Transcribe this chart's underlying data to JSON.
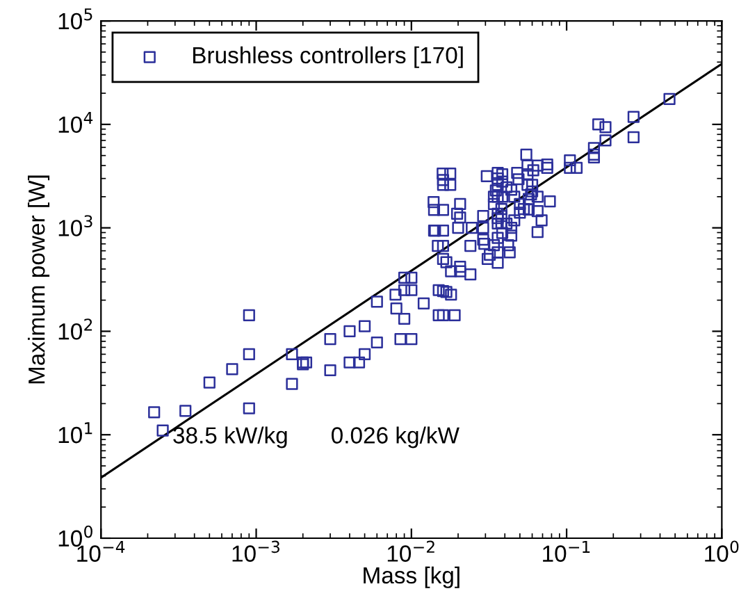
{
  "chart_data": {
    "type": "scatter",
    "xlabel": "Mass [kg]",
    "ylabel": "Maximum power [W]",
    "log": "xy",
    "grid": false,
    "legend": "top left",
    "marker": "square",
    "xlim": [
      0.0001,
      1
    ],
    "ylim": [
      1,
      100000
    ],
    "xticks": [
      {
        "value": 0.0001,
        "label": "10$^{−4}$"
      },
      {
        "value": 0.001,
        "label": "10$^{−3}$"
      },
      {
        "value": 0.01,
        "label": "10$^{−2}$"
      },
      {
        "value": 0.1,
        "label": "10$^{−1}$"
      },
      {
        "value": 1,
        "label": "10$^{0}$"
      }
    ],
    "yticks": [
      {
        "value": 1,
        "label": "10$^{0}$"
      },
      {
        "value": 10,
        "label": "10$^{1}$"
      },
      {
        "value": 100,
        "label": "10$^{2}$"
      },
      {
        "value": 1000,
        "label": "10$^{3}$"
      },
      {
        "value": 10000,
        "label": "10$^{4}$"
      },
      {
        "value": 100000,
        "label": "10$^{5}$"
      }
    ],
    "annotations": [
      "38.5 kW/kg",
      "0.026 kg/kW"
    ],
    "series": [
      {
        "name": "Brushless controllers [170]",
        "color": "#2b2f9a",
        "x": [
          0.00022,
          0.00025,
          0.00035,
          0.0005,
          0.0007,
          0.0009,
          0.0009,
          0.0009,
          0.0017,
          0.0017,
          0.002,
          0.002,
          0.0021,
          0.003,
          0.003,
          0.004,
          0.004,
          0.0046,
          0.005,
          0.005,
          0.006,
          0.006,
          0.0079,
          0.008,
          0.009,
          0.009,
          0.009,
          0.0085,
          0.01,
          0.01,
          0.01,
          0.012,
          0.0139,
          0.014,
          0.014,
          0.0142,
          0.0148,
          0.015,
          0.015,
          0.0159,
          0.016,
          0.016,
          0.016,
          0.016,
          0.016,
          0.016,
          0.016,
          0.016,
          0.0168,
          0.0168,
          0.0178,
          0.0178,
          0.018,
          0.018,
          0.019,
          0.0197,
          0.02,
          0.0206,
          0.0206,
          0.0206,
          0.0206,
          0.024,
          0.0245,
          0.024,
          0.029,
          0.029,
          0.029,
          0.0295,
          0.0306,
          0.031,
          0.032,
          0.034,
          0.034,
          0.034,
          0.035,
          0.036,
          0.036,
          0.036,
          0.036,
          0.036,
          0.036,
          0.036,
          0.036,
          0.036,
          0.036,
          0.0385,
          0.0385,
          0.0385,
          0.038,
          0.038,
          0.038,
          0.0385,
          0.041,
          0.041,
          0.042,
          0.043,
          0.044,
          0.044,
          0.044,
          0.046,
          0.046,
          0.048,
          0.049,
          0.05,
          0.05,
          0.053,
          0.055,
          0.056,
          0.056,
          0.056,
          0.057,
          0.057,
          0.059,
          0.06,
          0.06,
          0.061,
          0.065,
          0.065,
          0.065,
          0.065,
          0.069,
          0.075,
          0.075,
          0.078,
          0.105,
          0.105,
          0.116,
          0.15,
          0.15,
          0.15,
          0.16,
          0.178,
          0.178,
          0.27,
          0.27,
          0.46
        ],
        "values": [
          16.5,
          11,
          17,
          32,
          43,
          143,
          60,
          18,
          60,
          31,
          50,
          48,
          50,
          84,
          42,
          100,
          50,
          50,
          112,
          60,
          193,
          78,
          226,
          166,
          330,
          250,
          132,
          84,
          330,
          250,
          84,
          186,
          1775,
          1490,
          940,
          940,
          670,
          250,
          143,
          3350,
          2900,
          2600,
          1490,
          940,
          670,
          500,
          245,
          143,
          465,
          240,
          3350,
          2600,
          380,
          226,
          143,
          1370,
          1000,
          1700,
          1260,
          420,
          380,
          355,
          1000,
          670,
          1300,
          1000,
          770,
          700,
          3160,
          500,
          550,
          2000,
          1700,
          680,
          2300,
          3400,
          3000,
          2600,
          2000,
          1370,
          1240,
          1100,
          800,
          580,
          460,
          3300,
          2800,
          2000,
          1520,
          1300,
          1100,
          890,
          2470,
          1100,
          680,
          580,
          840,
          1000,
          2330,
          1180,
          2000,
          3400,
          2950,
          1400,
          1700,
          1520,
          5100,
          4000,
          3300,
          2600,
          1900,
          1500,
          2100,
          2250,
          2600,
          3600,
          4000,
          1450,
          2000,
          910,
          1180,
          4100,
          3800,
          1800,
          4500,
          3800,
          3800,
          5900,
          5100,
          4800,
          10000,
          9400,
          7000,
          11800,
          7500,
          17600
        ]
      },
      {
        "color": "#000000",
        "type": "line",
        "marker": "none",
        "line_style": "solid",
        "x": [
          0.0001,
          1
        ],
        "values": [
          3.85,
          38500
        ]
      }
    ]
  }
}
